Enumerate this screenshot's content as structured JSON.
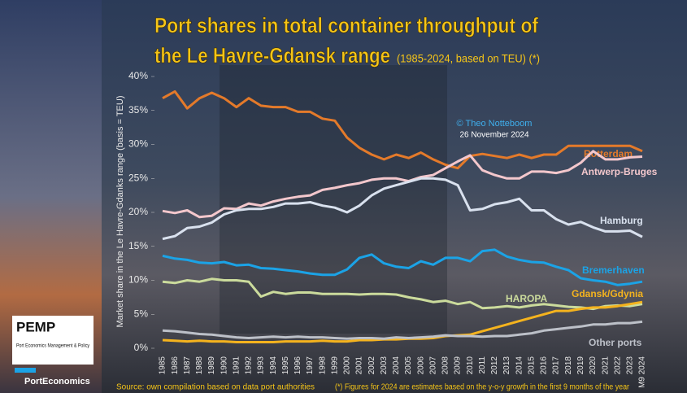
{
  "chart_data": {
    "type": "line",
    "title": [
      "Port shares in total container throughput of",
      "the Le Havre-Gdansk range"
    ],
    "subtitle": "(1985-2024, based on TEU) (*)",
    "y_label": "Market share in the Le Havre-Gdanks range (basis = TEU)",
    "credit": "© Theo Notteboom",
    "date": "26 November 2024",
    "source": "Source: own compilation based on data port authorities",
    "footnote": "(*) Figures for 2024 are estimates based on the y-o-y growth in the first 9 months of the year",
    "logo_texts": [
      "PEMP",
      "Port Economics Management & Policy",
      "PortEconomics"
    ],
    "categories": [
      "1985",
      "1986",
      "1987",
      "1988",
      "1989",
      "1990",
      "1991",
      "1992",
      "1993",
      "1994",
      "1995",
      "1996",
      "1997",
      "1998",
      "1999",
      "2000",
      "2001",
      "2002",
      "2003",
      "2004",
      "2005",
      "2006",
      "2007",
      "2008",
      "2009",
      "2010",
      "2011",
      "2012",
      "2013",
      "2014",
      "2015",
      "2016",
      "2017",
      "2018",
      "2019",
      "2020",
      "2021",
      "2022",
      "2023",
      "M9 2024"
    ],
    "ylim": [
      0,
      40
    ],
    "yticks": [
      {
        "value": 0,
        "label": "0%"
      },
      {
        "value": 5,
        "label": "5%"
      },
      {
        "value": 10,
        "label": "10%"
      },
      {
        "value": 15,
        "label": "15%"
      },
      {
        "value": 20,
        "label": "20%"
      },
      {
        "value": 25,
        "label": "25%"
      },
      {
        "value": 30,
        "label": "30%"
      },
      {
        "value": 35,
        "label": "35%"
      },
      {
        "value": 40,
        "label": "40%"
      }
    ],
    "series": [
      {
        "name": "Rotterdam",
        "color": "#e47a2a",
        "values": [
          36.8,
          37.8,
          35.3,
          36.8,
          37.6,
          36.8,
          35.5,
          36.8,
          35.7,
          35.5,
          35.5,
          34.8,
          34.8,
          33.8,
          33.5,
          31.0,
          29.5,
          28.5,
          27.8,
          28.5,
          28.0,
          28.8,
          27.8,
          27.0,
          26.5,
          28.3,
          28.6,
          28.3,
          28.0,
          28.5,
          28.0,
          28.5,
          28.5,
          29.8,
          29.8,
          29.8,
          29.8,
          29.8,
          29.8,
          29.0
        ]
      },
      {
        "name": "Antwerp-Bruges",
        "color": "#f3c7cc",
        "values": [
          20.2,
          19.9,
          20.3,
          19.3,
          19.5,
          20.6,
          20.5,
          21.3,
          21.0,
          21.6,
          22.0,
          22.3,
          22.5,
          23.3,
          23.6,
          24.0,
          24.3,
          24.8,
          25.0,
          25.0,
          24.6,
          25.2,
          25.5,
          26.5,
          27.5,
          28.4,
          26.2,
          25.5,
          25.0,
          25.0,
          26.0,
          26.0,
          25.8,
          26.2,
          27.3,
          29.0,
          27.8,
          27.8,
          28.1,
          28.2
        ]
      },
      {
        "name": "Hamburg",
        "color": "#d9e1ee",
        "values": [
          16.1,
          16.5,
          17.7,
          17.9,
          18.5,
          19.7,
          20.3,
          20.5,
          20.5,
          20.8,
          21.3,
          21.3,
          21.5,
          21.0,
          20.7,
          20.0,
          21.0,
          22.5,
          23.5,
          24.0,
          24.5,
          25.0,
          25.0,
          24.8,
          24.0,
          20.3,
          20.5,
          21.2,
          21.5,
          22.0,
          20.3,
          20.3,
          19.0,
          18.2,
          18.6,
          17.8,
          17.2,
          17.2,
          17.3,
          16.4
        ]
      },
      {
        "name": "Bremerhaven",
        "color": "#1ba3e6",
        "values": [
          13.6,
          13.2,
          13.0,
          12.6,
          12.5,
          12.7,
          12.2,
          12.3,
          11.8,
          11.7,
          11.5,
          11.3,
          11.0,
          10.8,
          10.8,
          11.6,
          13.3,
          13.8,
          12.5,
          12.0,
          11.8,
          12.8,
          12.3,
          13.3,
          13.3,
          12.8,
          14.3,
          14.5,
          13.5,
          13.0,
          12.7,
          12.6,
          12.0,
          11.5,
          10.3,
          10.0,
          9.8,
          9.3,
          9.5,
          9.8
        ]
      },
      {
        "name": "HAROPA",
        "color": "#cbdb9c",
        "values": [
          9.8,
          9.6,
          10.0,
          9.8,
          10.2,
          10.0,
          10.0,
          9.8,
          7.6,
          8.3,
          8.0,
          8.2,
          8.2,
          8.0,
          8.0,
          8.0,
          7.9,
          8.0,
          8.0,
          7.9,
          7.5,
          7.2,
          6.8,
          7.0,
          6.5,
          6.8,
          5.9,
          6.0,
          6.2,
          6.0,
          6.3,
          6.5,
          6.3,
          6.1,
          6.0,
          5.8,
          6.2,
          6.3,
          6.2,
          6.5
        ]
      },
      {
        "name": "Gdansk/Gdynia",
        "color": "#f4b31e",
        "values": [
          1.2,
          1.1,
          1.0,
          1.1,
          1.0,
          1.0,
          0.9,
          0.9,
          0.9,
          0.9,
          1.0,
          1.0,
          1.0,
          1.1,
          1.0,
          1.0,
          1.2,
          1.2,
          1.3,
          1.3,
          1.4,
          1.4,
          1.5,
          1.8,
          1.9,
          2.0,
          2.5,
          3.0,
          3.5,
          4.0,
          4.5,
          5.0,
          5.5,
          5.5,
          5.8,
          6.0,
          6.0,
          6.2,
          6.5,
          6.8
        ]
      },
      {
        "name": "Other ports",
        "color": "#bcc0c8",
        "values": [
          2.6,
          2.5,
          2.3,
          2.1,
          2.0,
          1.8,
          1.6,
          1.5,
          1.6,
          1.7,
          1.6,
          1.7,
          1.6,
          1.6,
          1.5,
          1.4,
          1.5,
          1.5,
          1.4,
          1.6,
          1.5,
          1.6,
          1.7,
          1.9,
          1.8,
          1.8,
          1.7,
          1.8,
          1.8,
          2.0,
          2.2,
          2.6,
          2.8,
          3.0,
          3.2,
          3.5,
          3.5,
          3.7,
          3.7,
          3.9
        ]
      }
    ]
  }
}
